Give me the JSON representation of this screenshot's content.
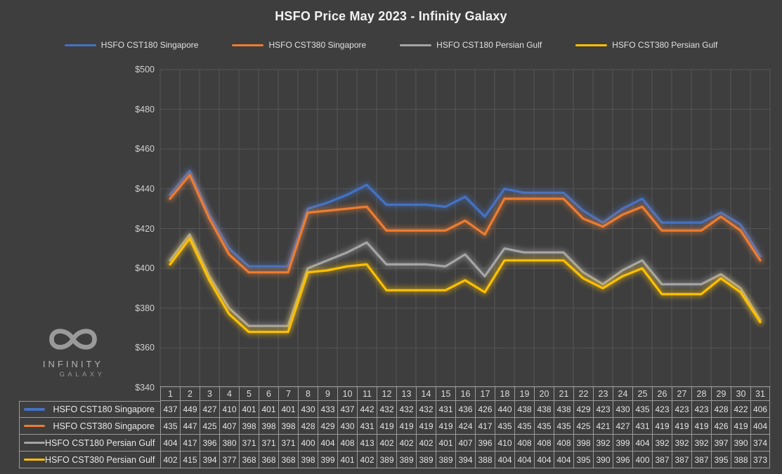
{
  "logo": {
    "line1": "INFINITY",
    "line2": "GALAXY"
  },
  "colors": {
    "background": "#3E3E3E",
    "gridline": "#565656",
    "table_border": "#9B9B9B",
    "title_text": "#F2F2F2",
    "series_blue": "#4472C4",
    "series_orange": "#ED7D31",
    "series_gray": "#A5A5A5",
    "series_yellow": "#FFC000"
  },
  "chart_data": {
    "type": "line",
    "title": "HSFO Price May 2023 - Infinity Galaxy",
    "xlabel": "",
    "ylabel": "",
    "categories": [
      1,
      2,
      3,
      4,
      5,
      6,
      7,
      8,
      9,
      10,
      11,
      12,
      13,
      14,
      15,
      16,
      17,
      18,
      19,
      20,
      21,
      22,
      23,
      24,
      25,
      26,
      27,
      28,
      29,
      30,
      31
    ],
    "series": [
      {
        "name": "HSFO CST180 Singapore",
        "color": "#4472C4",
        "values": [
          437,
          449,
          427,
          410,
          401,
          401,
          401,
          430,
          433,
          437,
          442,
          432,
          432,
          432,
          431,
          436,
          426,
          440,
          438,
          438,
          438,
          429,
          423,
          430,
          435,
          423,
          423,
          423,
          428,
          422,
          406
        ]
      },
      {
        "name": "HSFO CST380 Singapore",
        "color": "#ED7D31",
        "values": [
          435,
          447,
          425,
          407,
          398,
          398,
          398,
          428,
          429,
          430,
          431,
          419,
          419,
          419,
          419,
          424,
          417,
          435,
          435,
          435,
          435,
          425,
          421,
          427,
          431,
          419,
          419,
          419,
          426,
          419,
          404
        ]
      },
      {
        "name": "HSFO CST180 Persian Gulf",
        "color": "#A5A5A5",
        "values": [
          404,
          417,
          396,
          380,
          371,
          371,
          371,
          400,
          404,
          408,
          413,
          402,
          402,
          402,
          401,
          407,
          396,
          410,
          408,
          408,
          408,
          398,
          392,
          399,
          404,
          392,
          392,
          392,
          397,
          390,
          374
        ]
      },
      {
        "name": "HSFO CST380 Persian Gulf",
        "color": "#FFC000",
        "values": [
          402,
          415,
          394,
          377,
          368,
          368,
          368,
          398,
          399,
          401,
          402,
          389,
          389,
          389,
          389,
          394,
          388,
          404,
          404,
          404,
          404,
          395,
          390,
          396,
          400,
          387,
          387,
          387,
          395,
          388,
          373
        ]
      }
    ],
    "ylim": [
      340,
      500
    ],
    "y_tick_step": 20,
    "y_tick_labels": [
      "$500",
      "$480",
      "$460",
      "$440",
      "$420",
      "$400",
      "$380",
      "$360",
      "$340"
    ],
    "grid": true,
    "legend_position": "top",
    "data_table_shown": true
  }
}
